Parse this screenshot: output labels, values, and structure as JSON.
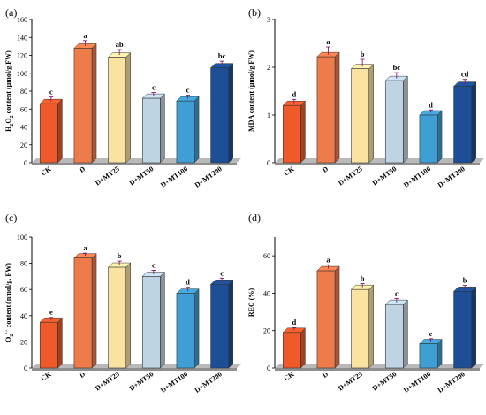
{
  "colors": {
    "bars": [
      "#ee5a2a",
      "#ee7c4a",
      "#fae2a0",
      "#bed4e2",
      "#3f9fd4",
      "#1d4e96"
    ],
    "axis_floor": "#b9b9b9",
    "error_bar": "#8b1a6b"
  },
  "chart_data": [
    {
      "panel_label": "(a)",
      "type": "bar",
      "style": "3d",
      "categories": [
        "CK",
        "D",
        "D+MT25",
        "D+MT50",
        "D+MT100",
        "D+MT200"
      ],
      "values": [
        66,
        128,
        118,
        72,
        69,
        106
      ],
      "errors": [
        5,
        6,
        6,
        4,
        4,
        5
      ],
      "significance": [
        "c",
        "a",
        "ab",
        "c",
        "c",
        "bc"
      ],
      "ylabel_main": "H",
      "ylabel_sub": "2",
      "ylabel_main2": "O",
      "ylabel_sub2": "2",
      "ylabel_rest": " content  (μmol/g.FW)",
      "ylim": [
        0,
        160
      ],
      "yticks": [
        "0",
        "20",
        "40",
        "60",
        "80",
        "100",
        "120",
        "140",
        "160"
      ]
    },
    {
      "panel_label": "(b)",
      "type": "bar",
      "style": "3d",
      "categories": [
        "CK",
        "D",
        "D+MT25",
        "D+MT50",
        "D+MT100",
        "D+MT200"
      ],
      "values": [
        1.2,
        2.22,
        1.97,
        1.72,
        1.0,
        1.6
      ],
      "errors": [
        0.08,
        0.16,
        0.15,
        0.12,
        0.06,
        0.1
      ],
      "significance": [
        "d",
        "a",
        "b",
        "bc",
        "d",
        "cd"
      ],
      "ylabel_main": "MDA content  (μmol/g.FW)",
      "ylim": [
        0,
        3
      ],
      "yticks": [
        "0",
        "1",
        "2",
        "3"
      ]
    },
    {
      "panel_label": "(c)",
      "type": "bar",
      "style": "3d",
      "categories": [
        "CK",
        "D",
        "D+MT25",
        "D+MT50",
        "D+MT100",
        "D+MT200"
      ],
      "values": [
        35,
        84,
        77,
        70,
        57,
        64
      ],
      "errors": [
        2,
        2,
        3,
        3,
        3,
        3
      ],
      "significance": [
        "e",
        "a",
        "b",
        "c",
        "d",
        "c"
      ],
      "ylabel_main": "O",
      "ylabel_sub": "2",
      "ylabel_sup": "·−",
      "ylabel_rest": " content (nmol/g. FW)",
      "ylim": [
        0,
        100
      ],
      "yticks": [
        "0",
        "20",
        "40",
        "60",
        "80",
        "100"
      ]
    },
    {
      "panel_label": "(d)",
      "type": "bar",
      "style": "3d",
      "categories": [
        "CK",
        "D",
        "D+MT25",
        "D+MT50",
        "D+MT100",
        "D+MT200"
      ],
      "values": [
        19,
        52,
        42,
        34,
        13,
        41
      ],
      "errors": [
        1.5,
        2,
        2,
        2,
        1.5,
        2
      ],
      "significance": [
        "d",
        "a",
        "b",
        "c",
        "e",
        "b"
      ],
      "ylabel_main": "REC (%)",
      "ylim": [
        0,
        70
      ],
      "yticks": [
        "0",
        "20",
        "40",
        "60"
      ]
    }
  ]
}
